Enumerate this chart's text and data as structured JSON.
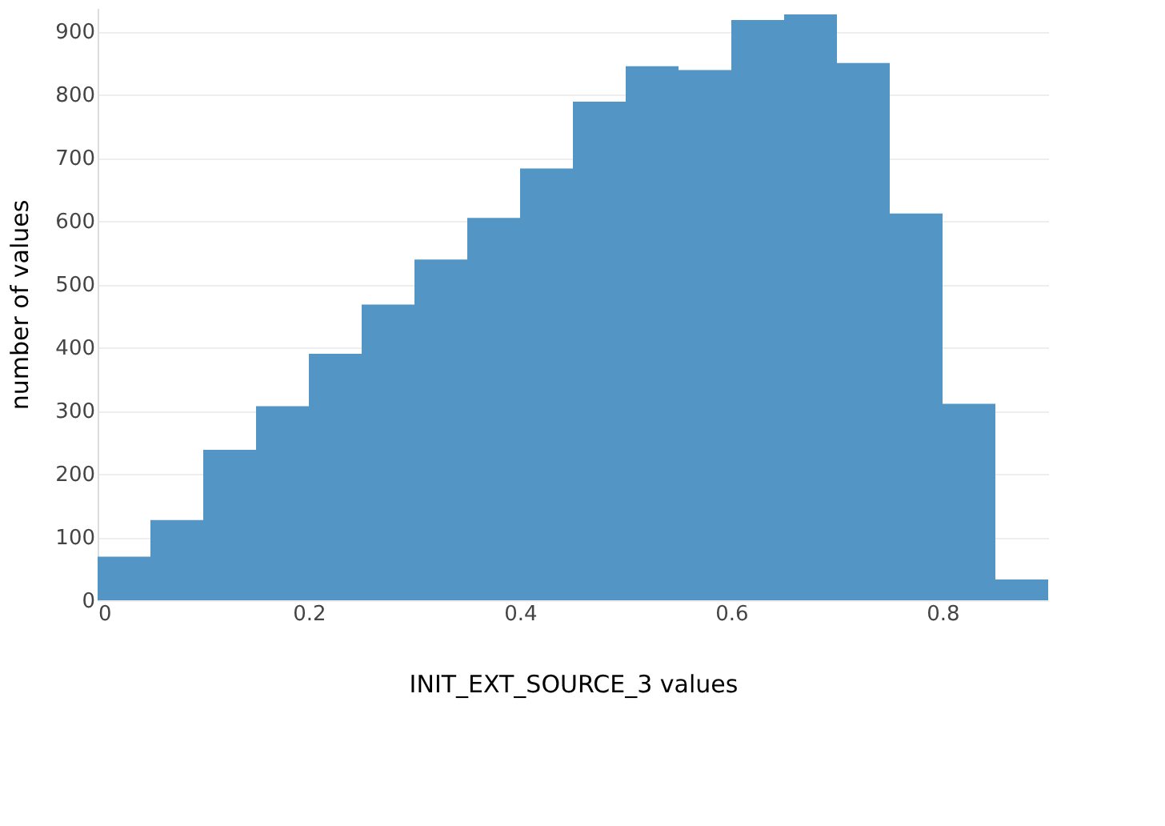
{
  "chart_data": {
    "type": "histogram",
    "xlabel": "INIT_EXT_SOURCE_3 values",
    "ylabel": "number of values",
    "bins": [
      0,
      0.05,
      0.1,
      0.15,
      0.2,
      0.25,
      0.3,
      0.35,
      0.4,
      0.45,
      0.5,
      0.55,
      0.6,
      0.65,
      0.7,
      0.75,
      0.8,
      0.85,
      0.9
    ],
    "values": [
      69,
      127,
      238,
      307,
      390,
      468,
      539,
      605,
      683,
      789,
      845,
      839,
      918,
      927,
      850,
      612,
      311,
      33
    ],
    "color": "#4a90c2",
    "xlim": [
      0,
      0.9
    ],
    "xticks": [
      0,
      0.2,
      0.4,
      0.6,
      0.8
    ],
    "ylim": [
      0,
      937
    ],
    "yticks": [
      0,
      100,
      200,
      300,
      400,
      500,
      600,
      700,
      800,
      900
    ],
    "grid": "y"
  }
}
